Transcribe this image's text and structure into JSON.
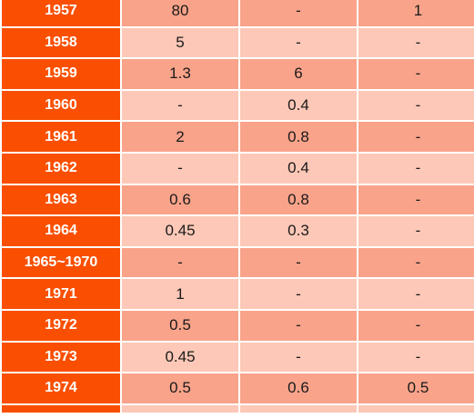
{
  "table": {
    "rows": [
      {
        "year": "1957",
        "a": "80",
        "b": "-",
        "c": "1",
        "shade": "dark"
      },
      {
        "year": "1958",
        "a": "5",
        "b": "-",
        "c": "-",
        "shade": "light"
      },
      {
        "year": "1959",
        "a": "1.3",
        "b": "6",
        "c": "-",
        "shade": "dark"
      },
      {
        "year": "1960",
        "a": "-",
        "b": "0.4",
        "c": "-",
        "shade": "light"
      },
      {
        "year": "1961",
        "a": "2",
        "b": "0.8",
        "c": "-",
        "shade": "dark"
      },
      {
        "year": "1962",
        "a": "-",
        "b": "0.4",
        "c": "-",
        "shade": "light"
      },
      {
        "year": "1963",
        "a": "0.6",
        "b": "0.8",
        "c": "-",
        "shade": "dark"
      },
      {
        "year": "1964",
        "a": "0.45",
        "b": "0.3",
        "c": "-",
        "shade": "light"
      },
      {
        "year": "1965~1970",
        "a": "-",
        "b": "-",
        "c": "-",
        "shade": "dark"
      },
      {
        "year": "1971",
        "a": "1",
        "b": "-",
        "c": "-",
        "shade": "light"
      },
      {
        "year": "1972",
        "a": "0.5",
        "b": "-",
        "c": "-",
        "shade": "dark"
      },
      {
        "year": "1973",
        "a": "0.45",
        "b": "-",
        "c": "-",
        "shade": "light"
      },
      {
        "year": "1974",
        "a": "0.5",
        "b": "0.6",
        "c": "0.5",
        "shade": "dark"
      }
    ]
  },
  "colors": {
    "year_fill": "#fa4f00",
    "row_dark": "#f9a38a",
    "row_light": "#fdc8b7"
  }
}
